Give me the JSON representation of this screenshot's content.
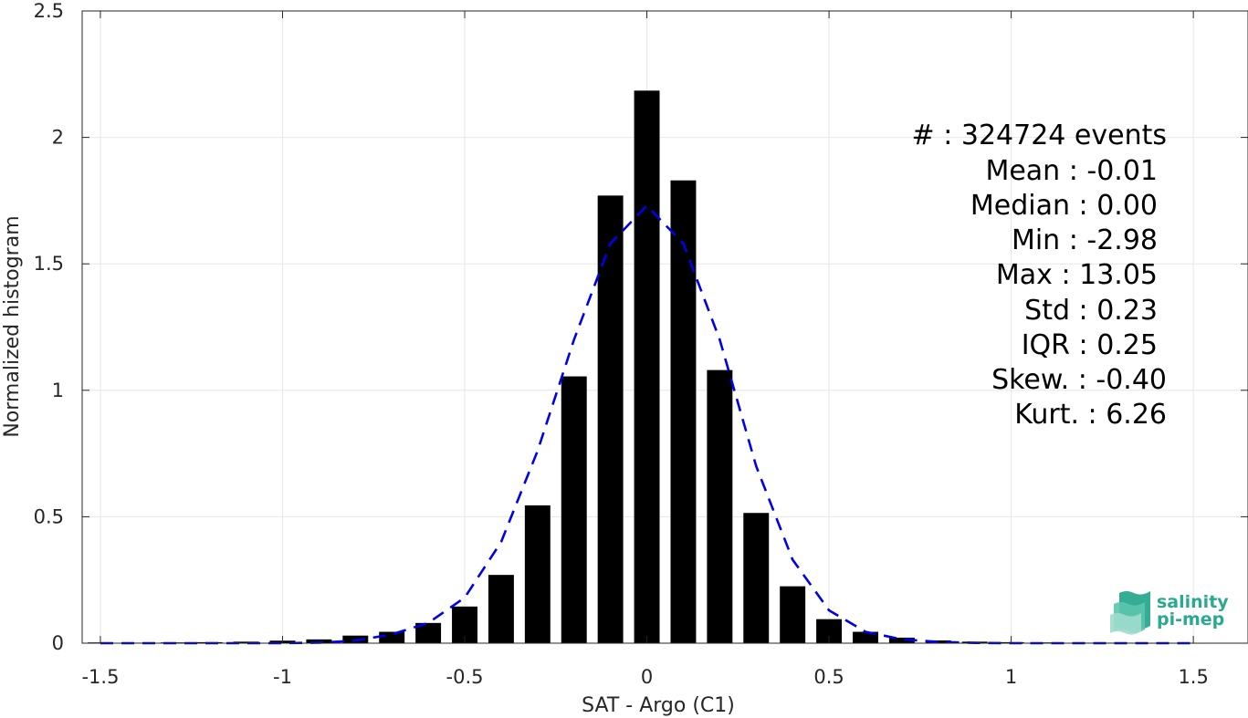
{
  "chart_data": {
    "type": "bar",
    "xlabel": "SAT - Argo (C1)",
    "ylabel": "Normalized histogram",
    "xlim": [
      -1.55,
      1.65
    ],
    "ylim": [
      0,
      2.5
    ],
    "grid": true,
    "x_ticks": [
      -1.5,
      -1,
      -0.5,
      0,
      0.5,
      1,
      1.5
    ],
    "x_tick_labels": [
      "-1.5",
      "-1",
      "-0.5",
      "0",
      "0.5",
      "1",
      "1.5"
    ],
    "y_ticks": [
      0,
      0.5,
      1,
      1.5,
      2,
      2.5
    ],
    "y_tick_labels": [
      "0",
      "0.5",
      "1",
      "1.5",
      "2",
      "2.5"
    ],
    "bar_color": "#000000",
    "bar_width": 0.07,
    "bars": {
      "x": [
        -1.5,
        -1.4,
        -1.3,
        -1.2,
        -1.1,
        -1.0,
        -0.9,
        -0.8,
        -0.7,
        -0.6,
        -0.5,
        -0.4,
        -0.3,
        -0.2,
        -0.1,
        0.0,
        0.1,
        0.2,
        0.3,
        0.4,
        0.5,
        0.6,
        0.7,
        0.8,
        0.9,
        1.0,
        1.1,
        1.2,
        1.3,
        1.4,
        1.5
      ],
      "values": [
        0.003,
        0.002,
        0.003,
        0.004,
        0.006,
        0.01,
        0.015,
        0.03,
        0.045,
        0.08,
        0.145,
        0.27,
        0.545,
        1.055,
        1.77,
        2.185,
        1.83,
        1.08,
        0.515,
        0.225,
        0.095,
        0.045,
        0.022,
        0.011,
        0.006,
        0.004,
        0.003,
        0.002,
        0.002,
        0.001,
        0.001
      ]
    },
    "fit_curve": {
      "style": "dashed",
      "color": "#0000ee",
      "x": [
        -1.5,
        -1.4,
        -1.3,
        -1.2,
        -1.1,
        -1.0,
        -0.9,
        -0.8,
        -0.7,
        -0.6,
        -0.5,
        -0.4,
        -0.3,
        -0.2,
        -0.1,
        0.0,
        0.1,
        0.2,
        0.3,
        0.4,
        0.5,
        0.6,
        0.7,
        0.8,
        0.9,
        1.0,
        1.1,
        1.2,
        1.3,
        1.4,
        1.5
      ],
      "values": [
        0.0,
        0.0,
        0.0,
        0.0,
        0.0,
        0.0,
        0.002,
        0.01,
        0.035,
        0.08,
        0.18,
        0.4,
        0.76,
        1.2,
        1.58,
        1.73,
        1.58,
        1.2,
        0.7,
        0.33,
        0.13,
        0.045,
        0.015,
        0.005,
        0.001,
        0.0,
        0.0,
        0.0,
        0.0,
        0.0,
        0.0
      ]
    },
    "stats_lines": [
      "#  : 324724 events",
      "Mean : -0.01",
      "Median : 0.00",
      "Min : -2.98",
      "Max : 13.05",
      "Std : 0.23",
      "IQR : 0.25",
      "Skew. : -0.40",
      "Kurt. : 6.26"
    ],
    "legend_placement": "top-right"
  },
  "logo": {
    "line1": "salinity",
    "line2": "pi-mep",
    "color": "#2aa98f"
  }
}
